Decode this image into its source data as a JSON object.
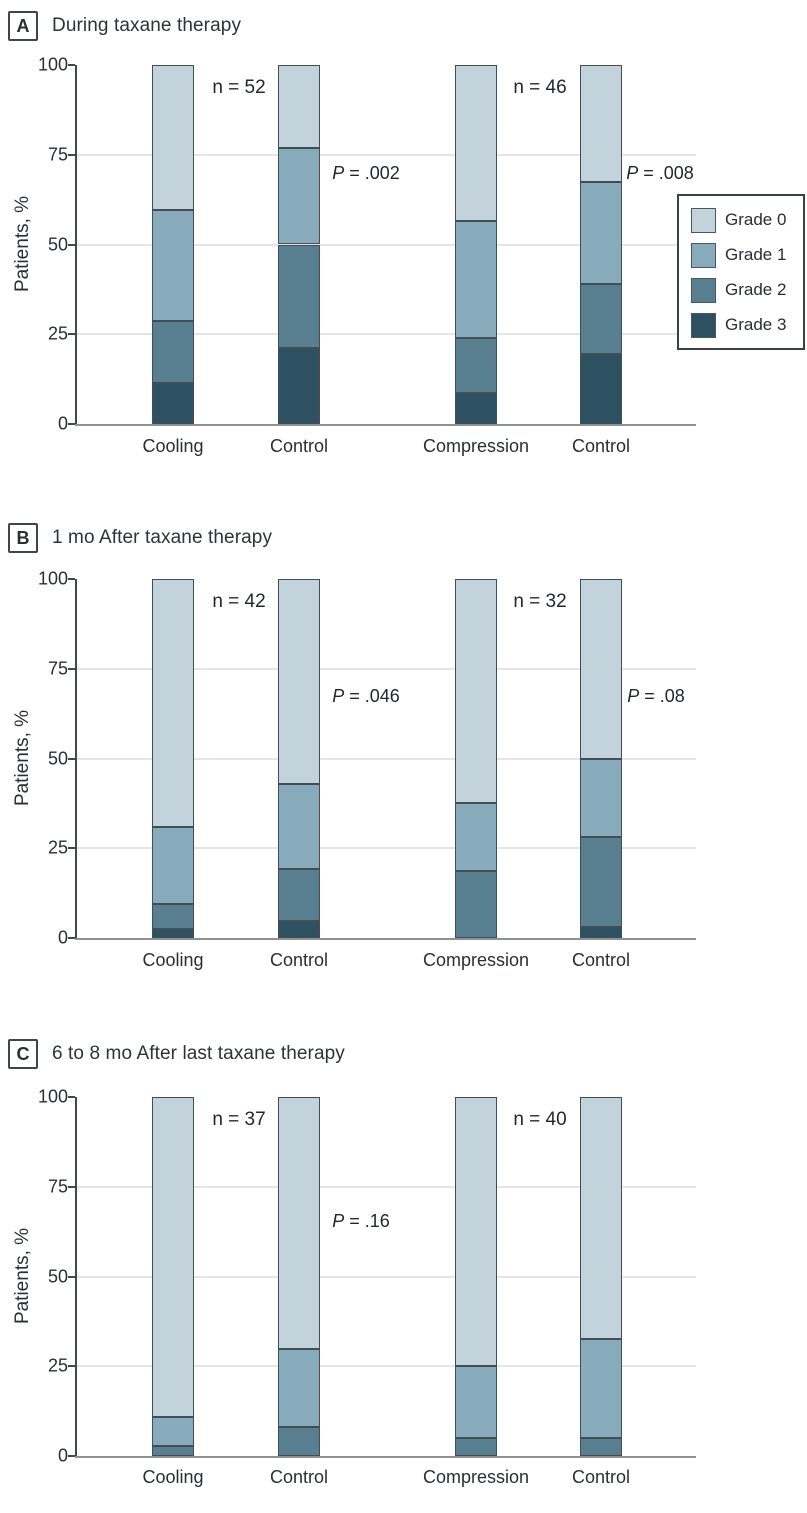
{
  "panels": [
    {
      "letter": "A",
      "title": "During taxane therapy",
      "n_left": "n = 52",
      "n_right": "n = 46",
      "p_left_var": "P",
      "p_left_rest": " = .002",
      "p_right_var": "P",
      "p_right_rest": " = .008"
    },
    {
      "letter": "B",
      "title": "1 mo After taxane therapy",
      "n_left": "n = 42",
      "n_right": "n = 32",
      "p_left_var": "P",
      "p_left_rest": " = .046",
      "p_right_var": "P",
      "p_right_rest": " = .08"
    },
    {
      "letter": "C",
      "title": "6 to 8 mo After last taxane therapy",
      "n_left": "n = 37",
      "n_right": "n = 40",
      "p_left_var": "P",
      "p_left_rest": " = .16"
    }
  ],
  "axis": {
    "ylabel": "Patients, %",
    "ticks": [
      100,
      75,
      50,
      25,
      0
    ],
    "gridlines": [
      25,
      50,
      75
    ],
    "ylim": [
      0,
      100
    ],
    "categories": [
      "Cooling",
      "Control",
      "Compression",
      "Control"
    ]
  },
  "legend": {
    "position": "upper right of panel A",
    "items": [
      {
        "label": "Grade 0",
        "color": "#c2d3db"
      },
      {
        "label": "Grade 1",
        "color": "#87abba"
      },
      {
        "label": "Grade 2",
        "color": "#587f90"
      },
      {
        "label": "Grade 3",
        "color": "#2e5162"
      }
    ]
  },
  "chart_data": [
    {
      "type": "bar",
      "stacked": true,
      "stack_order": "Grade 3 at bottom, Grade 0 at top",
      "title": "A: During taxane therapy",
      "categories": [
        "Cooling",
        "Control",
        "Compression",
        "Control"
      ],
      "series": [
        {
          "name": "Grade 0",
          "values": [
            40.4,
            23.1,
            43.5,
            32.6
          ]
        },
        {
          "name": "Grade 1",
          "values": [
            30.8,
            26.9,
            32.6,
            28.3
          ]
        },
        {
          "name": "Grade 2",
          "values": [
            17.3,
            28.8,
            15.2,
            19.5
          ]
        },
        {
          "name": "Grade 3",
          "values": [
            11.5,
            21.2,
            8.7,
            19.6
          ]
        }
      ],
      "annotations": {
        "n_labels": [
          "n = 52",
          "n = 46"
        ],
        "p_labels": [
          "P = .002",
          "P = .008"
        ]
      },
      "xlabel": "",
      "ylabel": "Patients, %",
      "ylim": [
        0,
        100
      ]
    },
    {
      "type": "bar",
      "stacked": true,
      "stack_order": "Grade 3 at bottom, Grade 0 at top",
      "title": "B: 1 mo After taxane therapy",
      "categories": [
        "Cooling",
        "Control",
        "Compression",
        "Control"
      ],
      "series": [
        {
          "name": "Grade 0",
          "values": [
            69.0,
            57.1,
            62.5,
            50.0
          ]
        },
        {
          "name": "Grade 1",
          "values": [
            21.4,
            23.8,
            18.8,
            21.9
          ]
        },
        {
          "name": "Grade 2",
          "values": [
            7.2,
            14.3,
            18.7,
            25.0
          ]
        },
        {
          "name": "Grade 3",
          "values": [
            2.4,
            4.8,
            0,
            3.1
          ]
        }
      ],
      "annotations": {
        "n_labels": [
          "n = 42",
          "n = 32"
        ],
        "p_labels": [
          "P = .046",
          "P = .08"
        ]
      },
      "xlabel": "",
      "ylabel": "Patients, %",
      "ylim": [
        0,
        100
      ]
    },
    {
      "type": "bar",
      "stacked": true,
      "stack_order": "Grade 3 at bottom, Grade 0 at top",
      "title": "C: 6 to 8 mo After last taxane therapy",
      "categories": [
        "Cooling",
        "Control",
        "Compression",
        "Control"
      ],
      "series": [
        {
          "name": "Grade 0",
          "values": [
            89.2,
            70.3,
            75.0,
            67.5
          ]
        },
        {
          "name": "Grade 1",
          "values": [
            8.1,
            21.6,
            20.0,
            27.5
          ]
        },
        {
          "name": "Grade 2",
          "values": [
            2.7,
            8.1,
            5.0,
            5.0
          ]
        },
        {
          "name": "Grade 3",
          "values": [
            0,
            0,
            0,
            0
          ]
        }
      ],
      "annotations": {
        "n_labels": [
          "n = 37",
          "n = 40"
        ],
        "p_labels": [
          "P = .16"
        ]
      },
      "xlabel": "",
      "ylabel": "Patients, %",
      "ylim": [
        0,
        100
      ]
    }
  ]
}
